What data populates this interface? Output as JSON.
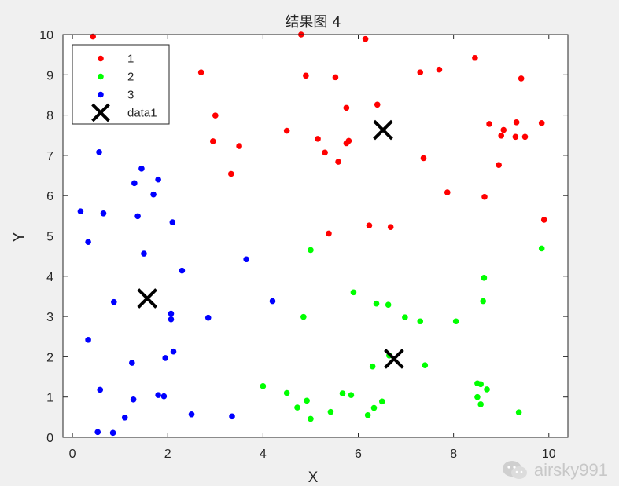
{
  "chart_data": {
    "type": "scatter",
    "title": "结果图 4",
    "xlabel": "X",
    "ylabel": "Y",
    "xlim": [
      -0.2,
      10.4
    ],
    "ylim": [
      0,
      10
    ],
    "xticks": [
      0,
      2,
      4,
      6,
      8,
      10
    ],
    "yticks": [
      0,
      1,
      2,
      3,
      4,
      5,
      6,
      7,
      8,
      9,
      10
    ],
    "grid": false,
    "legend_position": "top-left",
    "series": [
      {
        "name": "1",
        "color": "#ff0000",
        "marker": "dot",
        "points": [
          [
            0.43,
            9.95
          ],
          [
            2.7,
            9.06
          ],
          [
            3.0,
            7.99
          ],
          [
            2.95,
            7.35
          ],
          [
            3.5,
            7.23
          ],
          [
            3.33,
            6.54
          ],
          [
            4.8,
            10.0
          ],
          [
            4.9,
            8.98
          ],
          [
            4.5,
            7.61
          ],
          [
            5.15,
            7.41
          ],
          [
            5.3,
            7.07
          ],
          [
            5.52,
            8.94
          ],
          [
            5.58,
            6.84
          ],
          [
            5.75,
            8.18
          ],
          [
            5.75,
            7.3
          ],
          [
            5.8,
            7.36
          ],
          [
            6.15,
            9.89
          ],
          [
            6.4,
            8.26
          ],
          [
            7.3,
            9.06
          ],
          [
            7.7,
            9.13
          ],
          [
            7.37,
            6.93
          ],
          [
            7.87,
            6.08
          ],
          [
            8.45,
            9.42
          ],
          [
            8.65,
            5.97
          ],
          [
            8.75,
            7.78
          ],
          [
            8.95,
            6.76
          ],
          [
            9.0,
            7.49
          ],
          [
            9.05,
            7.63
          ],
          [
            9.3,
            7.46
          ],
          [
            9.32,
            7.82
          ],
          [
            9.42,
            8.91
          ],
          [
            9.5,
            7.46
          ],
          [
            9.85,
            7.8
          ],
          [
            9.9,
            5.4
          ],
          [
            5.38,
            5.06
          ],
          [
            6.23,
            5.26
          ],
          [
            6.68,
            5.22
          ]
        ]
      },
      {
        "name": "2",
        "color": "#00ff00",
        "marker": "dot",
        "points": [
          [
            4.0,
            1.27
          ],
          [
            4.5,
            1.1
          ],
          [
            4.72,
            0.74
          ],
          [
            4.85,
            2.99
          ],
          [
            4.92,
            0.91
          ],
          [
            5.0,
            0.46
          ],
          [
            5.0,
            4.65
          ],
          [
            5.42,
            0.63
          ],
          [
            5.67,
            1.09
          ],
          [
            5.85,
            1.05
          ],
          [
            5.9,
            3.6
          ],
          [
            6.2,
            0.55
          ],
          [
            6.3,
            1.76
          ],
          [
            6.33,
            0.73
          ],
          [
            6.38,
            3.32
          ],
          [
            6.5,
            0.89
          ],
          [
            6.63,
            3.29
          ],
          [
            6.65,
            2.03
          ],
          [
            6.98,
            2.98
          ],
          [
            7.3,
            2.88
          ],
          [
            7.4,
            1.79
          ],
          [
            8.05,
            2.88
          ],
          [
            8.5,
            1.34
          ],
          [
            8.5,
            1.0
          ],
          [
            8.57,
            1.32
          ],
          [
            8.57,
            0.82
          ],
          [
            8.62,
            3.38
          ],
          [
            8.64,
            3.96
          ],
          [
            8.7,
            1.19
          ],
          [
            9.37,
            0.62
          ],
          [
            9.85,
            4.69
          ]
        ]
      },
      {
        "name": "3",
        "color": "#0000ff",
        "marker": "dot",
        "points": [
          [
            0.17,
            5.61
          ],
          [
            0.33,
            4.85
          ],
          [
            0.33,
            2.42
          ],
          [
            0.53,
            0.13
          ],
          [
            0.56,
            7.08
          ],
          [
            0.58,
            1.18
          ],
          [
            0.65,
            5.56
          ],
          [
            0.85,
            0.11
          ],
          [
            0.87,
            3.36
          ],
          [
            1.1,
            0.49
          ],
          [
            1.25,
            1.85
          ],
          [
            1.28,
            0.94
          ],
          [
            1.3,
            6.31
          ],
          [
            1.37,
            5.49
          ],
          [
            1.45,
            6.67
          ],
          [
            1.5,
            4.56
          ],
          [
            1.7,
            6.03
          ],
          [
            1.8,
            6.4
          ],
          [
            1.8,
            1.05
          ],
          [
            1.92,
            1.02
          ],
          [
            1.95,
            1.97
          ],
          [
            2.07,
            3.07
          ],
          [
            2.07,
            2.93
          ],
          [
            2.1,
            5.34
          ],
          [
            2.12,
            2.13
          ],
          [
            2.3,
            4.14
          ],
          [
            2.5,
            0.57
          ],
          [
            2.85,
            2.97
          ],
          [
            3.35,
            0.52
          ],
          [
            3.65,
            4.42
          ],
          [
            4.2,
            3.38
          ]
        ]
      },
      {
        "name": "data1",
        "color": "#000000",
        "marker": "x",
        "points": [
          [
            1.57,
            3.45
          ],
          [
            6.52,
            7.63
          ],
          [
            6.75,
            1.95
          ]
        ]
      }
    ]
  },
  "watermark": {
    "text": "airsky991",
    "icon": "wechat-icon"
  }
}
